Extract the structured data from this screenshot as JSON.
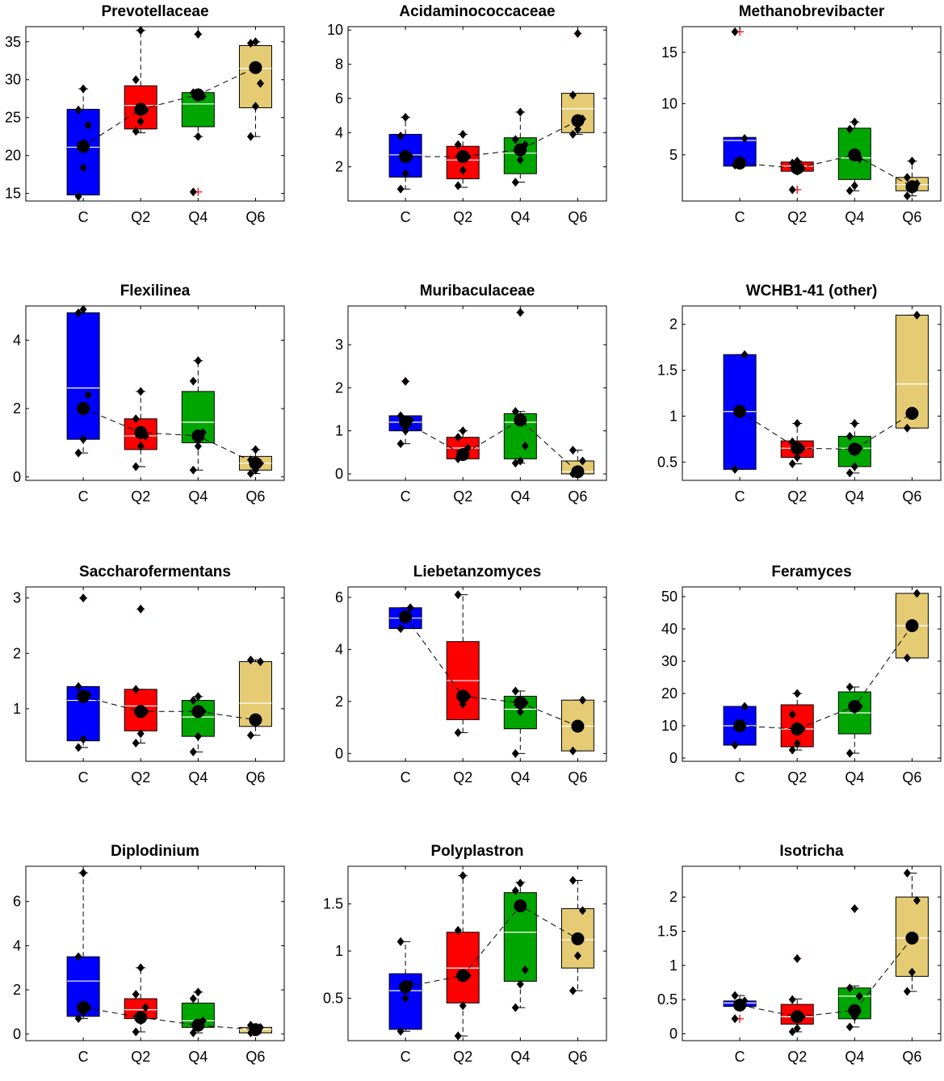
{
  "colors": {
    "C": "#0000ff",
    "Q2": "#ff0000",
    "Q4": "#00a600",
    "Q6": "#e5cc74",
    "outlier": "#ff0000",
    "median": "#ffffff"
  },
  "chart_data": [
    {
      "type": "box",
      "title": "Prevotellaceae",
      "categories": [
        "C",
        "Q2",
        "Q4",
        "Q6"
      ],
      "ylim": [
        14,
        37
      ],
      "yticks": [
        15,
        20,
        25,
        30,
        35
      ],
      "boxes": [
        {
          "q1": 14.8,
          "median": 21.1,
          "q3": 26.1,
          "whisker_low": 14.8,
          "whisker_high": 28.8,
          "mean": 21.2,
          "points": [
            14.6,
            18.4,
            24.0,
            26.0,
            28.8
          ],
          "outliers": []
        },
        {
          "q1": 23.5,
          "median": 26.6,
          "q3": 29.2,
          "whisker_low": 23.0,
          "whisker_high": 36.5,
          "mean": 26.1,
          "points": [
            23.2,
            24.5,
            26.0,
            30.0,
            36.5
          ],
          "outliers": []
        },
        {
          "q1": 23.8,
          "median": 26.8,
          "q3": 28.3,
          "whisker_low": 22.5,
          "whisker_high": 28.3,
          "mean": 28.0,
          "points": [
            15.2,
            22.5,
            27.8,
            28.3,
            36.0
          ],
          "outliers": [
            15.2,
            36.0
          ]
        },
        {
          "q1": 26.3,
          "median": 31.5,
          "q3": 34.5,
          "whisker_low": 22.5,
          "whisker_high": 35.0,
          "mean": 31.6,
          "points": [
            22.5,
            26.5,
            29.5,
            34.8,
            35.0
          ],
          "outliers": []
        }
      ]
    },
    {
      "type": "box",
      "title": "Acidaminococcaceae",
      "categories": [
        "C",
        "Q2",
        "Q4",
        "Q6"
      ],
      "ylim": [
        0,
        10.2
      ],
      "yticks": [
        2,
        4,
        6,
        8,
        10
      ],
      "boxes": [
        {
          "q1": 1.4,
          "median": 2.7,
          "q3": 3.9,
          "whisker_low": 0.7,
          "whisker_high": 4.9,
          "mean": 2.6,
          "points": [
            0.7,
            1.6,
            2.6,
            3.8,
            4.9
          ],
          "outliers": []
        },
        {
          "q1": 1.3,
          "median": 2.4,
          "q3": 3.2,
          "whisker_low": 0.8,
          "whisker_high": 3.9,
          "mean": 2.6,
          "points": [
            0.9,
            1.8,
            2.6,
            3.3,
            3.9
          ],
          "outliers": []
        },
        {
          "q1": 1.6,
          "median": 2.8,
          "q3": 3.7,
          "whisker_low": 1.1,
          "whisker_high": 5.2,
          "mean": 3.0,
          "points": [
            1.1,
            2.4,
            3.3,
            3.6,
            5.2
          ],
          "outliers": []
        },
        {
          "q1": 4.0,
          "median": 5.4,
          "q3": 6.3,
          "whisker_low": 3.9,
          "whisker_high": 6.3,
          "mean": 4.7,
          "points": [
            3.9,
            4.2,
            4.8,
            6.2,
            9.8
          ],
          "outliers": [
            9.8
          ]
        }
      ]
    },
    {
      "type": "box",
      "title": "Methanobrevibacter",
      "categories": [
        "C",
        "Q2",
        "Q4",
        "Q6"
      ],
      "ylim": [
        0.5,
        17.5
      ],
      "yticks": [
        5,
        10,
        15
      ],
      "boxes": [
        {
          "q1": 3.9,
          "median": 6.4,
          "q3": 6.7,
          "whisker_low": 3.9,
          "whisker_high": 6.7,
          "mean": 4.2,
          "points": [
            4.0,
            4.4,
            6.6,
            17.0
          ],
          "outliers": [
            17.0
          ]
        },
        {
          "q1": 3.4,
          "median": 3.9,
          "q3": 4.3,
          "whisker_low": 3.3,
          "whisker_high": 4.4,
          "mean": 3.7,
          "points": [
            1.6,
            3.4,
            3.7,
            4.2,
            4.4
          ],
          "outliers": [
            1.6
          ]
        },
        {
          "q1": 2.6,
          "median": 4.7,
          "q3": 7.6,
          "whisker_low": 1.5,
          "whisker_high": 8.2,
          "mean": 5.0,
          "points": [
            1.5,
            2.0,
            4.6,
            7.5,
            8.2
          ],
          "outliers": []
        },
        {
          "q1": 1.5,
          "median": 2.1,
          "q3": 2.8,
          "whisker_low": 1.0,
          "whisker_high": 4.4,
          "mean": 1.9,
          "points": [
            1.0,
            1.6,
            2.2,
            2.8,
            4.4
          ],
          "outliers": []
        }
      ]
    },
    {
      "type": "box",
      "title": "Flexilinea",
      "categories": [
        "C",
        "Q2",
        "Q4",
        "Q6"
      ],
      "ylim": [
        -0.1,
        5.0
      ],
      "yticks": [
        0,
        2,
        4
      ],
      "boxes": [
        {
          "q1": 1.1,
          "median": 2.6,
          "q3": 4.8,
          "whisker_low": 0.7,
          "whisker_high": 4.8,
          "mean": 2.0,
          "points": [
            0.7,
            1.1,
            2.4,
            4.8,
            4.9
          ],
          "outliers": []
        },
        {
          "q1": 0.8,
          "median": 1.2,
          "q3": 1.7,
          "whisker_low": 0.3,
          "whisker_high": 2.5,
          "mean": 1.3,
          "points": [
            0.3,
            0.9,
            1.2,
            1.7,
            2.5
          ],
          "outliers": []
        },
        {
          "q1": 1.0,
          "median": 1.6,
          "q3": 2.5,
          "whisker_low": 0.2,
          "whisker_high": 3.4,
          "mean": 1.2,
          "points": [
            0.2,
            0.9,
            1.3,
            2.8,
            3.4
          ],
          "outliers": []
        },
        {
          "q1": 0.2,
          "median": 0.4,
          "q3": 0.6,
          "whisker_low": 0.1,
          "whisker_high": 0.8,
          "mean": 0.4,
          "points": [
            0.1,
            0.2,
            0.4,
            0.5,
            0.8
          ],
          "outliers": []
        }
      ]
    },
    {
      "type": "box",
      "title": "Muribaculaceae",
      "categories": [
        "C",
        "Q2",
        "Q4",
        "Q6"
      ],
      "ylim": [
        -0.15,
        3.9
      ],
      "yticks": [
        0,
        1,
        2,
        3
      ],
      "boxes": [
        {
          "q1": 1.0,
          "median": 1.2,
          "q3": 1.35,
          "whisker_low": 0.7,
          "whisker_high": 1.35,
          "mean": 1.2,
          "points": [
            0.7,
            1.0,
            1.25,
            1.35,
            2.15
          ],
          "outliers": [
            2.15
          ]
        },
        {
          "q1": 0.35,
          "median": 0.6,
          "q3": 0.85,
          "whisker_low": 0.35,
          "whisker_high": 1.0,
          "mean": 0.45,
          "points": [
            0.35,
            0.45,
            0.6,
            0.85,
            1.0
          ],
          "outliers": []
        },
        {
          "q1": 0.35,
          "median": 1.2,
          "q3": 1.4,
          "whisker_low": 0.25,
          "whisker_high": 1.45,
          "mean": 1.25,
          "points": [
            0.25,
            0.3,
            0.65,
            1.45,
            3.75
          ],
          "outliers": [
            3.75
          ]
        },
        {
          "q1": 0.0,
          "median": 0.05,
          "q3": 0.3,
          "whisker_low": 0.0,
          "whisker_high": 0.55,
          "mean": 0.05,
          "points": [
            0.0,
            0.05,
            0.3,
            0.55
          ],
          "outliers": []
        }
      ]
    },
    {
      "type": "box",
      "title": "WCHB1-41 (other)",
      "categories": [
        "C",
        "Q2",
        "Q4",
        "Q6"
      ],
      "ylim": [
        0.3,
        2.2
      ],
      "yticks": [
        0.5,
        1,
        1.5,
        2
      ],
      "boxes": [
        {
          "q1": 0.42,
          "median": 1.05,
          "q3": 1.67,
          "whisker_low": 0.42,
          "whisker_high": 1.67,
          "mean": 1.05,
          "points": [
            0.42,
            1.05,
            1.67
          ],
          "outliers": []
        },
        {
          "q1": 0.55,
          "median": 0.65,
          "q3": 0.73,
          "whisker_low": 0.48,
          "whisker_high": 0.92,
          "mean": 0.65,
          "points": [
            0.48,
            0.55,
            0.65,
            0.72,
            0.92
          ],
          "outliers": []
        },
        {
          "q1": 0.45,
          "median": 0.65,
          "q3": 0.78,
          "whisker_low": 0.38,
          "whisker_high": 0.92,
          "mean": 0.64,
          "points": [
            0.38,
            0.45,
            0.65,
            0.78,
            0.92
          ],
          "outliers": []
        },
        {
          "q1": 0.87,
          "median": 1.35,
          "q3": 2.1,
          "whisker_low": 0.87,
          "whisker_high": 2.1,
          "mean": 1.03,
          "points": [
            0.87,
            1.03,
            2.1
          ],
          "outliers": []
        }
      ]
    },
    {
      "type": "box",
      "title": "Saccharofermentans",
      "categories": [
        "C",
        "Q2",
        "Q4",
        "Q6"
      ],
      "ylim": [
        0.05,
        3.2
      ],
      "yticks": [
        1,
        2,
        3
      ],
      "boxes": [
        {
          "q1": 0.42,
          "median": 1.15,
          "q3": 1.4,
          "whisker_low": 0.3,
          "whisker_high": 1.4,
          "mean": 1.22,
          "points": [
            0.3,
            0.45,
            1.25,
            1.4,
            3.0
          ],
          "outliers": [
            3.0
          ]
        },
        {
          "q1": 0.6,
          "median": 1.05,
          "q3": 1.35,
          "whisker_low": 0.38,
          "whisker_high": 1.35,
          "mean": 0.95,
          "points": [
            0.38,
            0.55,
            0.95,
            1.35,
            2.8
          ],
          "outliers": [
            2.8
          ]
        },
        {
          "q1": 0.5,
          "median": 0.85,
          "q3": 1.15,
          "whisker_low": 0.22,
          "whisker_high": 1.22,
          "mean": 0.95,
          "points": [
            0.22,
            0.5,
            0.95,
            1.15,
            1.22
          ],
          "outliers": []
        },
        {
          "q1": 0.68,
          "median": 1.1,
          "q3": 1.85,
          "whisker_low": 0.52,
          "whisker_high": 1.88,
          "mean": 0.8,
          "points": [
            0.52,
            0.8,
            1.85,
            1.88
          ],
          "outliers": []
        }
      ]
    },
    {
      "type": "box",
      "title": "Liebetanzomyces",
      "categories": [
        "C",
        "Q2",
        "Q4",
        "Q6"
      ],
      "ylim": [
        -0.3,
        6.4
      ],
      "yticks": [
        0,
        2,
        4,
        6
      ],
      "boxes": [
        {
          "q1": 4.8,
          "median": 5.2,
          "q3": 5.6,
          "whisker_low": 4.8,
          "whisker_high": 5.6,
          "mean": 5.25,
          "points": [
            4.8,
            5.25,
            5.6
          ],
          "outliers": []
        },
        {
          "q1": 1.3,
          "median": 2.8,
          "q3": 4.3,
          "whisker_low": 0.8,
          "whisker_high": 6.1,
          "mean": 2.2,
          "points": [
            0.8,
            1.9,
            2.2,
            6.1
          ],
          "outliers": []
        },
        {
          "q1": 0.95,
          "median": 1.7,
          "q3": 2.2,
          "whisker_low": 0.0,
          "whisker_high": 2.4,
          "mean": 1.95,
          "points": [
            0.0,
            1.6,
            1.95,
            2.4
          ],
          "outliers": []
        },
        {
          "q1": 0.1,
          "median": 1.05,
          "q3": 2.05,
          "whisker_low": 0.1,
          "whisker_high": 2.05,
          "mean": 1.05,
          "points": [
            0.1,
            1.05,
            2.05
          ],
          "outliers": []
        }
      ]
    },
    {
      "type": "box",
      "title": "Feramyces",
      "categories": [
        "C",
        "Q2",
        "Q4",
        "Q6"
      ],
      "ylim": [
        -1,
        53
      ],
      "yticks": [
        0,
        10,
        20,
        30,
        40,
        50
      ],
      "boxes": [
        {
          "q1": 4.0,
          "median": 10.0,
          "q3": 16.0,
          "whisker_low": 4.0,
          "whisker_high": 16.0,
          "mean": 10.0,
          "points": [
            4.0,
            10.0,
            16.0
          ],
          "outliers": []
        },
        {
          "q1": 3.5,
          "median": 9.0,
          "q3": 16.5,
          "whisker_low": 2.5,
          "whisker_high": 20.0,
          "mean": 9.0,
          "points": [
            2.5,
            4.5,
            9.0,
            13.5,
            20.0
          ],
          "outliers": []
        },
        {
          "q1": 7.5,
          "median": 14.0,
          "q3": 20.5,
          "whisker_low": 1.5,
          "whisker_high": 22.0,
          "mean": 16.0,
          "points": [
            1.5,
            15.0,
            16.0,
            22.0
          ],
          "outliers": []
        },
        {
          "q1": 31.0,
          "median": 41.0,
          "q3": 51.0,
          "whisker_low": 31.0,
          "whisker_high": 51.0,
          "mean": 41.0,
          "points": [
            31.0,
            41.0,
            51.0
          ],
          "outliers": []
        }
      ]
    },
    {
      "type": "box",
      "title": "Diplodinium",
      "categories": [
        "C",
        "Q2",
        "Q4",
        "Q6"
      ],
      "ylim": [
        -0.3,
        7.6
      ],
      "yticks": [
        0,
        2,
        4,
        6
      ],
      "boxes": [
        {
          "q1": 0.8,
          "median": 2.4,
          "q3": 3.5,
          "whisker_low": 0.7,
          "whisker_high": 7.3,
          "mean": 1.2,
          "points": [
            0.7,
            1.0,
            1.2,
            3.5,
            7.3
          ],
          "outliers": []
        },
        {
          "q1": 0.7,
          "median": 1.1,
          "q3": 1.6,
          "whisker_low": 0.1,
          "whisker_high": 3.0,
          "mean": 0.75,
          "points": [
            0.1,
            0.6,
            1.2,
            1.8,
            3.0
          ],
          "outliers": []
        },
        {
          "q1": 0.3,
          "median": 0.6,
          "q3": 1.4,
          "whisker_low": 0.05,
          "whisker_high": 1.9,
          "mean": 0.4,
          "points": [
            0.05,
            0.4,
            0.6,
            1.6,
            1.9
          ],
          "outliers": []
        },
        {
          "q1": 0.05,
          "median": 0.2,
          "q3": 0.3,
          "whisker_low": 0.0,
          "whisker_high": 0.4,
          "mean": 0.2,
          "points": [
            0.05,
            0.2,
            0.3,
            0.4
          ],
          "outliers": []
        }
      ]
    },
    {
      "type": "box",
      "title": "Polyplastron",
      "categories": [
        "C",
        "Q2",
        "Q4",
        "Q6"
      ],
      "ylim": [
        0.05,
        1.9
      ],
      "yticks": [
        0.5,
        1,
        1.5
      ],
      "boxes": [
        {
          "q1": 0.17,
          "median": 0.58,
          "q3": 0.76,
          "whisker_low": 0.15,
          "whisker_high": 1.1,
          "mean": 0.62,
          "points": [
            0.15,
            0.5,
            0.65,
            1.1
          ],
          "outliers": []
        },
        {
          "q1": 0.45,
          "median": 0.82,
          "q3": 1.2,
          "whisker_low": 0.1,
          "whisker_high": 1.8,
          "mean": 0.74,
          "points": [
            0.1,
            0.42,
            0.74,
            1.22,
            1.8
          ],
          "outliers": []
        },
        {
          "q1": 0.68,
          "median": 1.2,
          "q3": 1.62,
          "whisker_low": 0.4,
          "whisker_high": 1.73,
          "mean": 1.48,
          "points": [
            0.4,
            0.65,
            0.8,
            1.64,
            1.72
          ],
          "outliers": []
        },
        {
          "q1": 0.82,
          "median": 1.12,
          "q3": 1.45,
          "whisker_low": 0.58,
          "whisker_high": 1.75,
          "mean": 1.13,
          "points": [
            0.58,
            0.95,
            1.43,
            1.75
          ],
          "outliers": []
        }
      ]
    },
    {
      "type": "box",
      "title": "Isotricha",
      "categories": [
        "C",
        "Q2",
        "Q4",
        "Q6"
      ],
      "ylim": [
        -0.1,
        2.45
      ],
      "yticks": [
        0,
        0.5,
        1,
        1.5,
        2
      ],
      "boxes": [
        {
          "q1": 0.4,
          "median": 0.45,
          "q3": 0.48,
          "whisker_low": 0.4,
          "whisker_high": 0.56,
          "mean": 0.42,
          "points": [
            0.22,
            0.4,
            0.48,
            0.56
          ],
          "outliers": [
            0.22
          ]
        },
        {
          "q1": 0.14,
          "median": 0.25,
          "q3": 0.43,
          "whisker_low": 0.03,
          "whisker_high": 0.51,
          "mean": 0.25,
          "points": [
            0.03,
            0.08,
            0.25,
            0.5,
            1.1
          ],
          "outliers": [
            1.1
          ]
        },
        {
          "q1": 0.22,
          "median": 0.55,
          "q3": 0.67,
          "whisker_low": 0.1,
          "whisker_high": 0.7,
          "mean": 0.34,
          "points": [
            0.1,
            0.25,
            0.55,
            0.67,
            1.83
          ],
          "outliers": [
            1.83
          ]
        },
        {
          "q1": 0.84,
          "median": 1.4,
          "q3": 2.0,
          "whisker_low": 0.62,
          "whisker_high": 2.35,
          "mean": 1.4,
          "points": [
            0.62,
            0.9,
            1.95,
            2.35
          ],
          "outliers": []
        }
      ]
    }
  ]
}
